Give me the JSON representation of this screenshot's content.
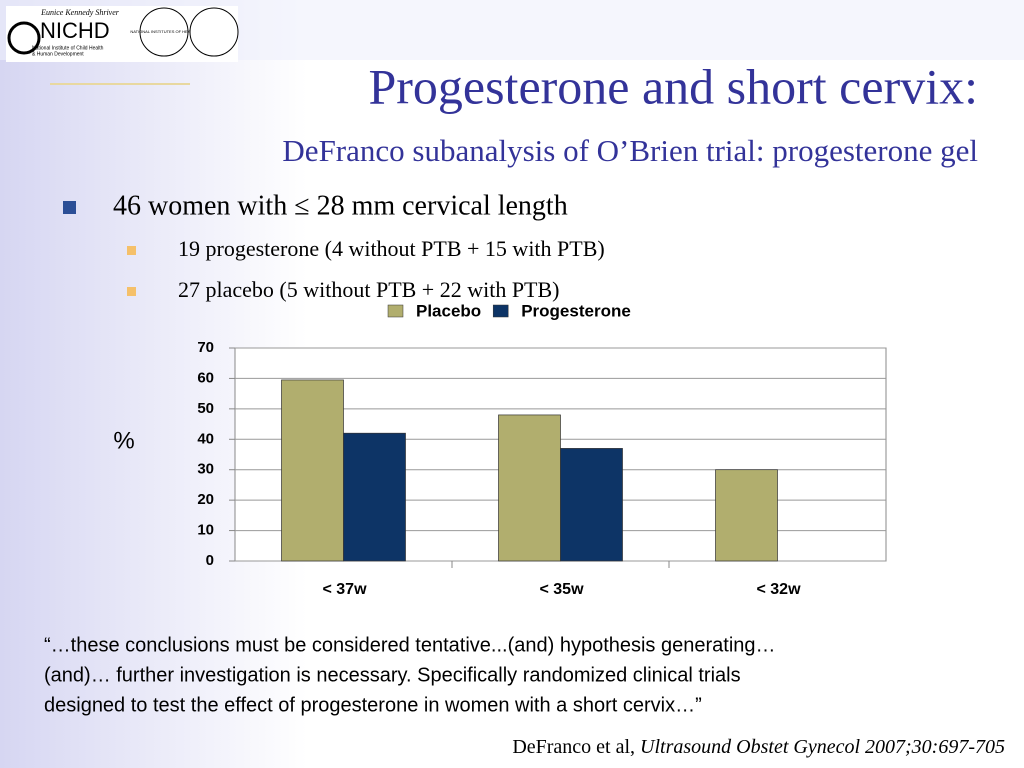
{
  "logo": {
    "top": "Eunice Kennedy Shriver",
    "name": "NICHD",
    "line1": "National Institute of Child Health",
    "line2": "& Human Development",
    "nih": "NATIONAL INSTITUTES OF HEALTH"
  },
  "slide": {
    "title": "Progesterone and short cervix:",
    "subtitle": "DeFranco subanalysis of O’Brien trial: progesterone gel",
    "bullet": "46 women with ≤ 28 mm cervical length",
    "subbullets": [
      "19 progesterone (4 without PTB + 15 with PTB)",
      "27 placebo (5 without PTB + 22 with PTB)"
    ],
    "quote": [
      "“…these conclusions must be considered tentative...(and) hypothesis generating…",
      "(and)… further investigation is necessary. Specifically randomized clinical trials",
      "designed to test the effect of progesterone in women with a short cervix…”"
    ],
    "citation_author": "DeFranco et al, ",
    "citation_journal": "Ultrasound Obstet Gynecol 2007;30:697-705"
  },
  "chart_data": {
    "type": "bar",
    "ylabel": "%",
    "categories": [
      "< 37w",
      "< 35w",
      "< 32w"
    ],
    "series": [
      {
        "name": "Placebo",
        "color": "#b1ae6e",
        "values": [
          59.5,
          48,
          30
        ]
      },
      {
        "name": "Progesterone",
        "color": "#0d3466",
        "values": [
          42,
          37,
          0
        ]
      }
    ],
    "ylim": [
      0,
      70
    ],
    "yticks": [
      0,
      10,
      20,
      30,
      40,
      50,
      60,
      70
    ],
    "grid": true,
    "legend": "top"
  }
}
